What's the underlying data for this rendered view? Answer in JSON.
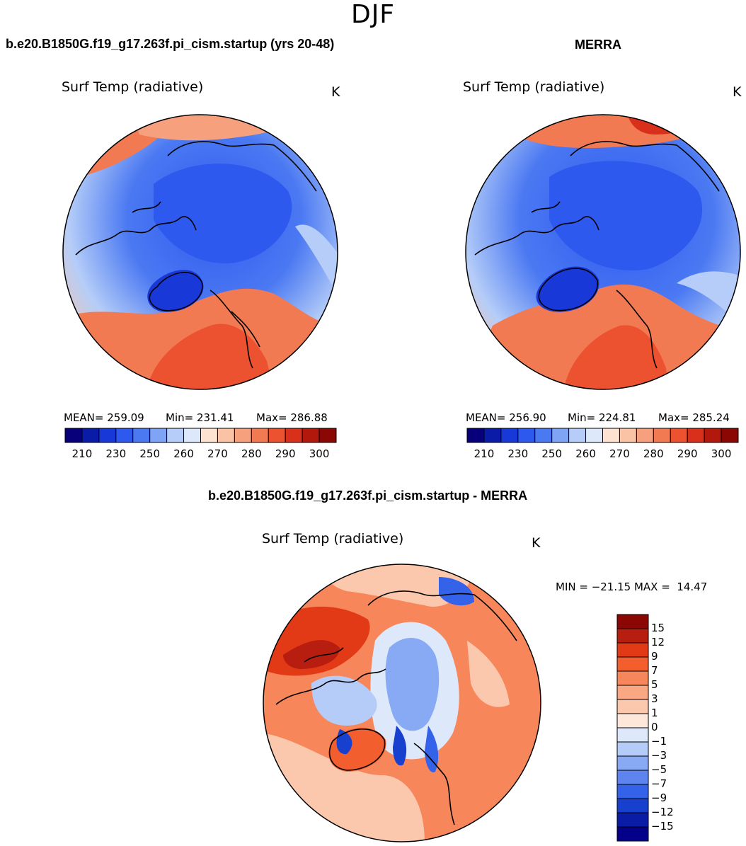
{
  "season": "DJF",
  "panels": [
    {
      "case_title": "b.e20.B1850G.f19_g17.263f.pi_cism.startup (yrs 20-48)",
      "variable": "Surf Temp (radiative)",
      "units": "K",
      "mean_text": "MEAN= 259.09",
      "min_text": "Min= 231.41",
      "max_text": "Max= 286.88"
    },
    {
      "case_title": "MERRA",
      "variable": "Surf Temp (radiative)",
      "units": "K",
      "mean_text": "MEAN= 256.90",
      "min_text": "Min= 224.81",
      "max_text": "Max= 285.24"
    },
    {
      "case_title": "b.e20.B1850G.f19_g17.263f.pi_cism.startup - MERRA",
      "variable": "Surf Temp (radiative)",
      "units": "K",
      "minmax_text": "MIN = −21.15 MAX =  14.47"
    }
  ],
  "chart_data": [
    {
      "type": "heatmap",
      "title": "Surf Temp (radiative)",
      "projection": "north polar stereographic",
      "units": "K",
      "mean": 259.09,
      "min": 231.41,
      "max": 286.88,
      "colorbar_levels": [
        205,
        210,
        215,
        230,
        240,
        250,
        255,
        260,
        265,
        270,
        275,
        280,
        285,
        290,
        295,
        300
      ],
      "colorbar_ticks": [
        "210",
        "230",
        "250",
        "260",
        "270",
        "280",
        "290",
        "300"
      ]
    },
    {
      "type": "heatmap",
      "title": "Surf Temp (radiative)",
      "projection": "north polar stereographic",
      "units": "K",
      "mean": 256.9,
      "min": 224.81,
      "max": 285.24,
      "colorbar_levels": [
        205,
        210,
        215,
        230,
        240,
        250,
        255,
        260,
        265,
        270,
        275,
        280,
        285,
        290,
        295,
        300
      ],
      "colorbar_ticks": [
        "210",
        "230",
        "250",
        "260",
        "270",
        "280",
        "290",
        "300"
      ]
    },
    {
      "type": "heatmap",
      "title": "Surf Temp (radiative)",
      "projection": "north polar stereographic",
      "units": "K",
      "min": -21.15,
      "max": 14.47,
      "colorbar_levels": [
        "15",
        "12",
        "9",
        "7",
        "5",
        "3",
        "1",
        "0",
        "−1",
        "−3",
        "−5",
        "−7",
        "−9",
        "−12",
        "−15"
      ]
    }
  ],
  "colors": {
    "abs_scale": [
      "#08007a",
      "#0a1ba8",
      "#1838d8",
      "#2e59ef",
      "#4b79f2",
      "#7fa4f6",
      "#b5cdf8",
      "#dde9fb",
      "#fde2d2",
      "#fbc3a6",
      "#f6a07e",
      "#f27a53",
      "#ec5230",
      "#d9301c",
      "#b2190c",
      "#8a0704"
    ],
    "diff_scale": [
      "#8a0704",
      "#b81e10",
      "#e23a16",
      "#f35e2e",
      "#f7865b",
      "#faa883",
      "#fcc8ad",
      "#fde7da",
      "#dde9fb",
      "#b4ccf7",
      "#88a9f3",
      "#5d84ef",
      "#3462e8",
      "#1840cf",
      "#0a1ca6",
      "#05008a"
    ]
  }
}
